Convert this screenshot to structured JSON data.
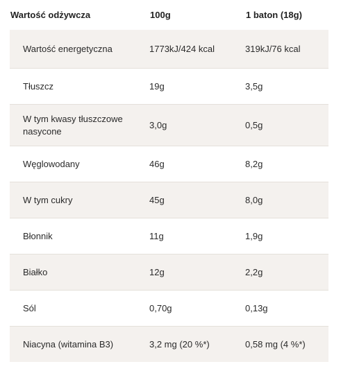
{
  "table": {
    "headers": {
      "name": "Wartość odżywcza",
      "per100": "100g",
      "perBar": "1 baton (18g)"
    },
    "rows": [
      {
        "name": "Wartość energetyczna",
        "per100": "1773kJ/424 kcal",
        "perBar": "319kJ/76 kcal"
      },
      {
        "name": "Tłuszcz",
        "per100": "19g",
        "perBar": "3,5g"
      },
      {
        "name": "W tym kwasy tłuszczowe nasycone",
        "per100": "3,0g",
        "perBar": "0,5g"
      },
      {
        "name": "Węglowodany",
        "per100": "46g",
        "perBar": "8,2g"
      },
      {
        "name": "W tym cukry",
        "per100": "45g",
        "perBar": "8,0g"
      },
      {
        "name": "Błonnik",
        "per100": "11g",
        "perBar": "1,9g"
      },
      {
        "name": "Białko",
        "per100": "12g",
        "perBar": "2,2g"
      },
      {
        "name": "Sól",
        "per100": "0,70g",
        "perBar": "0,13g"
      },
      {
        "name": "Niacyna (witamina B3)",
        "per100": "3,2 mg (20 %*)",
        "perBar": "0,58 mg (4 %*)"
      }
    ]
  }
}
